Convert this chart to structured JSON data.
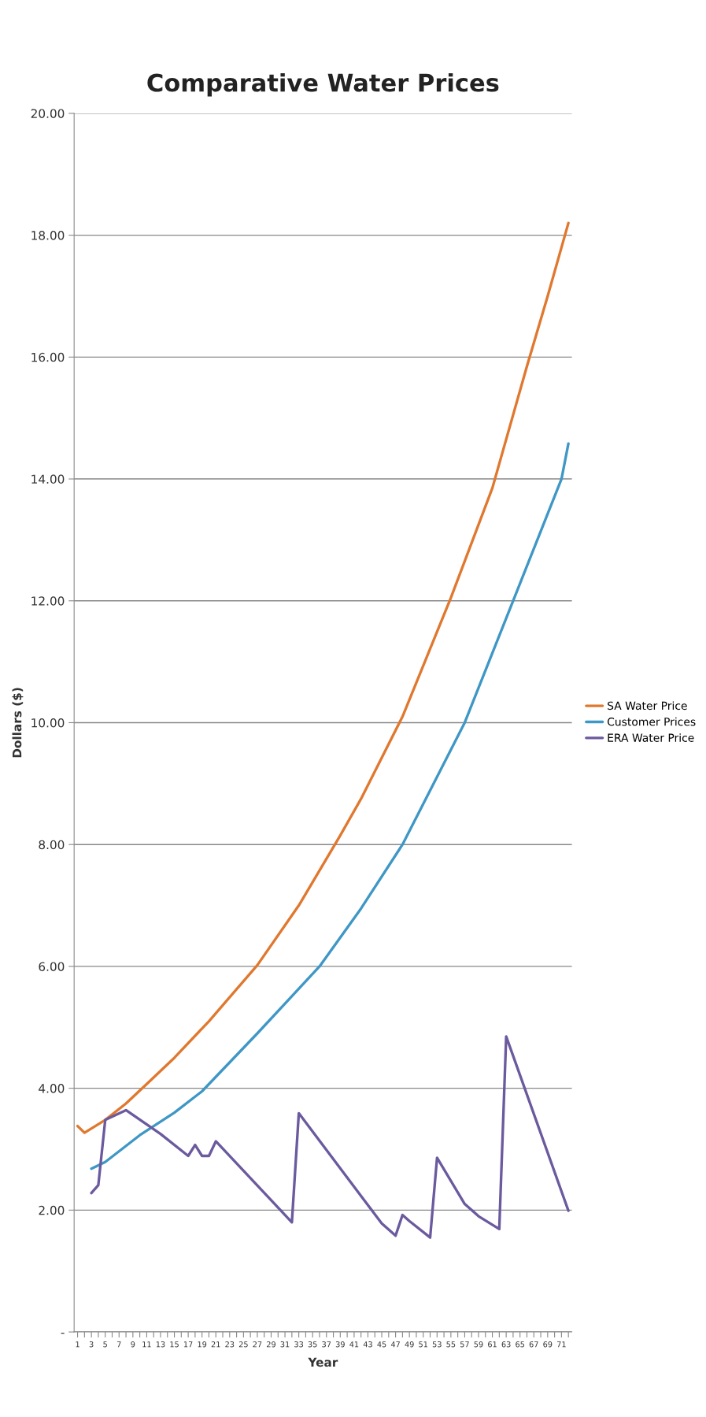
{
  "chart_data": {
    "type": "line",
    "title": "Comparative Water Prices",
    "xlabel": "Year",
    "ylabel": "Dollars ($)",
    "xlim": [
      0.5,
      72.5
    ],
    "xticks": [
      1,
      {
        "value": 2,
        "label": null
      },
      3,
      {
        "value": 4,
        "label": null
      },
      5,
      {
        "value": 6,
        "label": null
      },
      7,
      {
        "value": 8,
        "label": null
      },
      9,
      {
        "value": 10,
        "label": null
      },
      11,
      {
        "value": 12,
        "label": null
      },
      13,
      {
        "value": 14,
        "label": null
      },
      15,
      {
        "value": 16,
        "label": null
      },
      17,
      {
        "value": 18,
        "label": null
      },
      19,
      {
        "value": 20,
        "label": null
      },
      21,
      {
        "value": 22,
        "label": null
      },
      23,
      {
        "value": 24,
        "label": null
      },
      25,
      {
        "value": 26,
        "label": null
      },
      27,
      {
        "value": 28,
        "label": null
      },
      29,
      {
        "value": 30,
        "label": null
      },
      31,
      {
        "value": 32,
        "label": null
      },
      33,
      {
        "value": 34,
        "label": null
      },
      35,
      {
        "value": 36,
        "label": null
      },
      37,
      {
        "value": 38,
        "label": null
      },
      39,
      {
        "value": 40,
        "label": null
      },
      41,
      {
        "value": 42,
        "label": null
      },
      43,
      {
        "value": 44,
        "label": null
      },
      45,
      {
        "value": 46,
        "label": null
      },
      47,
      {
        "value": 48,
        "label": null
      },
      49,
      {
        "value": 50,
        "label": null
      },
      51,
      {
        "value": 52,
        "label": null
      },
      53,
      {
        "value": 54,
        "label": null
      },
      55,
      {
        "value": 56,
        "label": null
      },
      57,
      {
        "value": 58,
        "label": null
      },
      59,
      {
        "value": 60,
        "label": null
      },
      61,
      {
        "value": 62,
        "label": null
      },
      63,
      {
        "value": 64,
        "label": null
      },
      65,
      {
        "value": 66,
        "label": null
      },
      67,
      {
        "value": 68,
        "label": null
      },
      69,
      {
        "value": 70,
        "label": null
      },
      71,
      {
        "value": 72,
        "label": null
      }
    ],
    "ylim": [
      0,
      20
    ],
    "yticks": [
      {
        "value": 0,
        "label": "-"
      },
      {
        "value": 2,
        "label": "2.00"
      },
      {
        "value": 4,
        "label": "4.00"
      },
      {
        "value": 6,
        "label": "6.00"
      },
      {
        "value": 8,
        "label": "8.00"
      },
      {
        "value": 10,
        "label": "10.00"
      },
      {
        "value": 12,
        "label": "12.00"
      },
      {
        "value": 14,
        "label": "14.00"
      },
      {
        "value": 16,
        "label": "16.00"
      },
      {
        "value": 18,
        "label": "18.00"
      },
      {
        "value": 20,
        "label": "20.00"
      }
    ],
    "grid": "y",
    "legend": "right",
    "marker": "none",
    "line_style": "solid",
    "series": [
      {
        "name": "SA Water Price",
        "color": "#e0782f",
        "x": [
          1,
          2,
          5,
          8,
          11,
          15,
          20,
          27,
          33,
          39,
          42,
          48,
          55,
          61,
          66,
          69,
          72
        ],
        "values": [
          3.38,
          3.27,
          3.48,
          3.75,
          4.07,
          4.5,
          5.1,
          6.02,
          7.0,
          8.15,
          8.75,
          10.1,
          12.05,
          13.85,
          15.85,
          17.0,
          18.2
        ]
      },
      {
        "name": "Customer Prices",
        "color": "#3f97c5",
        "x": [
          3,
          5,
          10,
          15,
          19,
          27,
          36,
          42,
          48,
          57,
          64,
          71,
          72
        ],
        "values": [
          2.68,
          2.79,
          3.23,
          3.6,
          3.95,
          4.9,
          6.0,
          6.95,
          8.0,
          10.0,
          12.0,
          14.0,
          14.58
        ]
      },
      {
        "name": "ERA Water Price",
        "color": "#6b5a9e",
        "x": [
          3,
          4,
          5,
          8,
          13,
          17,
          18,
          19,
          20,
          21,
          32,
          33,
          45,
          47,
          48,
          49,
          52,
          53,
          57,
          59,
          62,
          63,
          72
        ],
        "values": [
          2.28,
          2.41,
          3.48,
          3.64,
          3.25,
          2.89,
          3.07,
          2.89,
          2.89,
          3.13,
          1.8,
          3.59,
          1.78,
          1.58,
          1.92,
          1.82,
          1.55,
          2.86,
          2.1,
          1.9,
          1.69,
          4.85,
          1.99
        ]
      }
    ]
  }
}
